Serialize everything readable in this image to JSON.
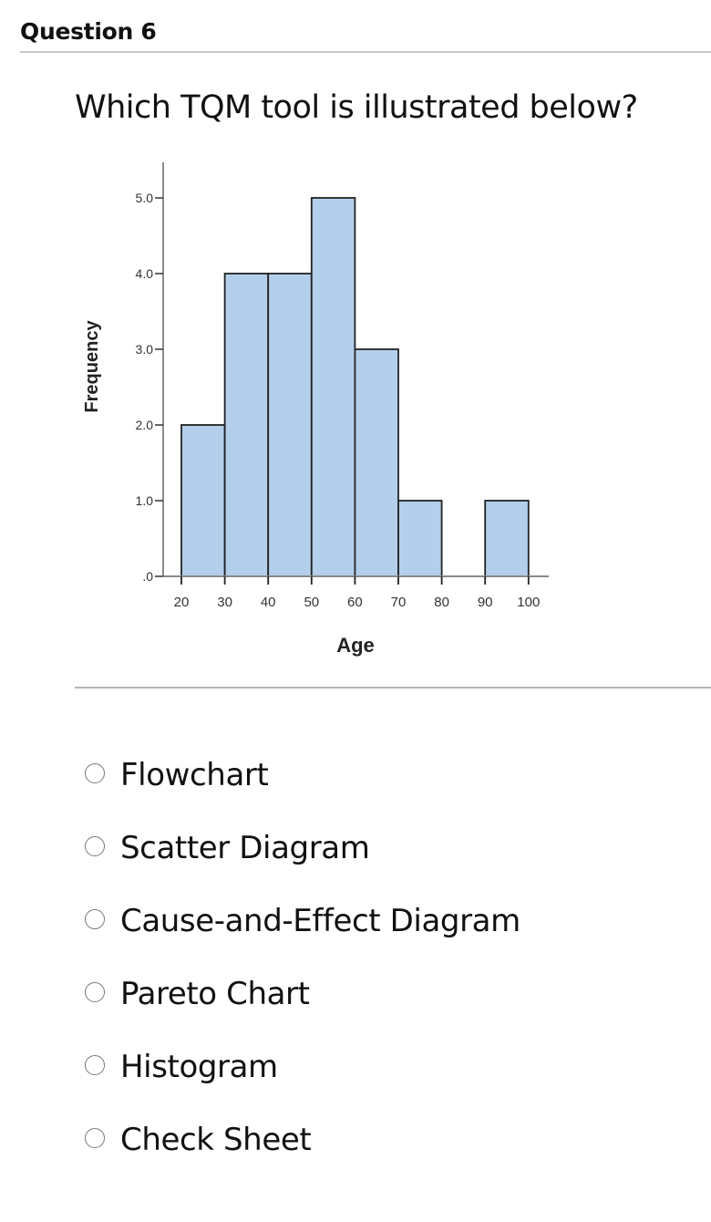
{
  "question": {
    "header": "Question 6",
    "text": "Which TQM tool is illustrated below?"
  },
  "chart_data": {
    "type": "bar",
    "subtype": "histogram",
    "title": "",
    "xlabel": "Age",
    "ylabel": "Frequency",
    "x_ticks": [
      "20",
      "30",
      "40",
      "50",
      "60",
      "70",
      "80",
      "90",
      "100"
    ],
    "y_ticks": [
      ".0",
      "1.0",
      "2.0",
      "3.0",
      "4.0",
      "5.0"
    ],
    "ylim": [
      0,
      5.5
    ],
    "xlim": [
      20,
      100
    ],
    "bins": [
      {
        "from": 20,
        "to": 30,
        "count": 2
      },
      {
        "from": 30,
        "to": 40,
        "count": 4
      },
      {
        "from": 40,
        "to": 50,
        "count": 4
      },
      {
        "from": 50,
        "to": 60,
        "count": 5
      },
      {
        "from": 60,
        "to": 70,
        "count": 3
      },
      {
        "from": 70,
        "to": 80,
        "count": 1
      },
      {
        "from": 80,
        "to": 90,
        "count": 0
      },
      {
        "from": 90,
        "to": 100,
        "count": 1
      }
    ],
    "categories": [
      "20-30",
      "30-40",
      "40-50",
      "50-60",
      "60-70",
      "70-80",
      "80-90",
      "90-100"
    ],
    "values": [
      2,
      4,
      4,
      5,
      3,
      1,
      0,
      1
    ],
    "bar_color": "#b3cfeb",
    "bar_edge_color": "#222222",
    "grid": false,
    "legend": null
  },
  "options": [
    {
      "label": "Flowchart",
      "selected": false
    },
    {
      "label": "Scatter Diagram",
      "selected": false
    },
    {
      "label": "Cause-and-Effect Diagram",
      "selected": false
    },
    {
      "label": "Pareto Chart",
      "selected": false
    },
    {
      "label": "Histogram",
      "selected": false
    },
    {
      "label": "Check Sheet",
      "selected": false
    }
  ]
}
